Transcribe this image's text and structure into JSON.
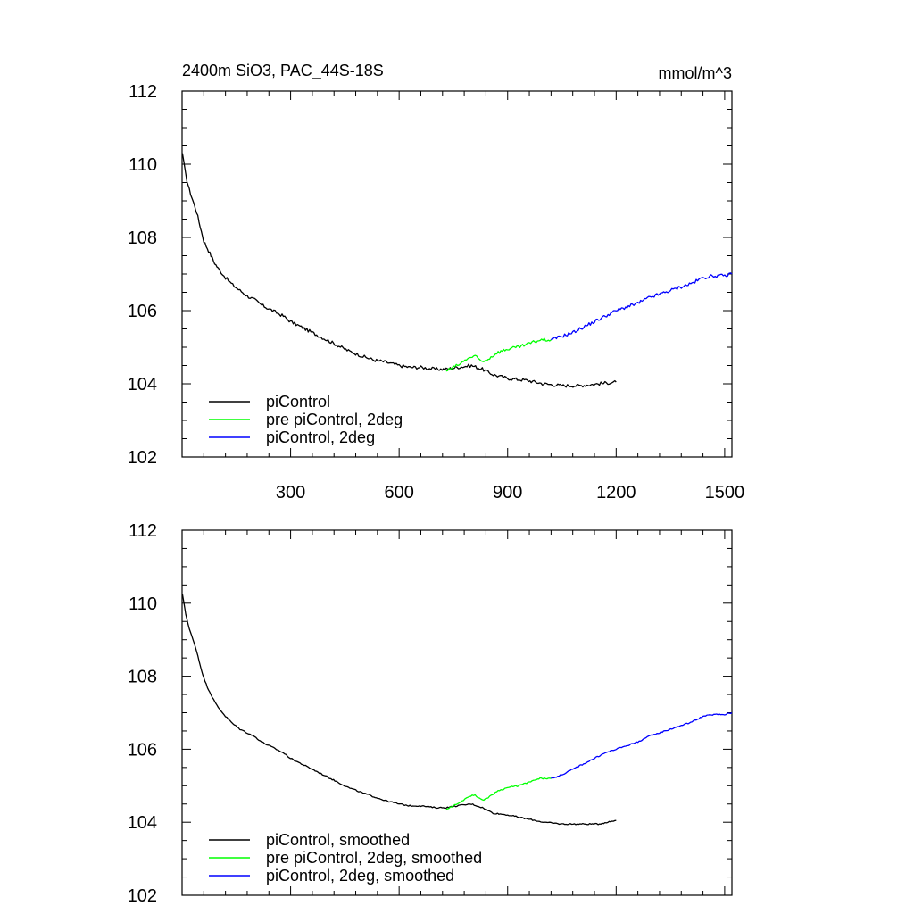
{
  "chart_data": [
    {
      "type": "line",
      "title": "2400m SiO3, PAC_44S-18S",
      "units": "mmol/m^3",
      "xlim": [
        0,
        1520
      ],
      "ylim": [
        102,
        112
      ],
      "xticks": [
        300,
        600,
        900,
        1200,
        1500
      ],
      "yticks": [
        102,
        104,
        106,
        108,
        110,
        112
      ],
      "show_x_tick_labels": true,
      "legend_position": "bottom-left",
      "series": [
        {
          "name": "piControl",
          "color": "#000000",
          "x": [
            1,
            10,
            20,
            30,
            40,
            50,
            60,
            70,
            80,
            90,
            100,
            120,
            140,
            160,
            180,
            200,
            220,
            250,
            280,
            300,
            330,
            360,
            400,
            430,
            460,
            500,
            530,
            560,
            600,
            630,
            660,
            700,
            730,
            760,
            800,
            830,
            860,
            900,
            950,
            1000,
            1050,
            1100,
            1150,
            1200
          ],
          "y": [
            110.3,
            109.7,
            109.3,
            109.0,
            108.7,
            108.3,
            107.9,
            107.7,
            107.5,
            107.3,
            107.15,
            106.9,
            106.7,
            106.55,
            106.4,
            106.3,
            106.15,
            106.0,
            105.85,
            105.7,
            105.55,
            105.4,
            105.2,
            105.05,
            104.9,
            104.75,
            104.65,
            104.6,
            104.5,
            104.45,
            104.45,
            104.4,
            104.4,
            104.45,
            104.5,
            104.4,
            104.25,
            104.15,
            104.1,
            104.0,
            103.95,
            103.95,
            104.0,
            104.05
          ]
        },
        {
          "name": "pre piControl, 2deg",
          "color": "#00ff00",
          "x": [
            730,
            750,
            770,
            790,
            810,
            830,
            850,
            870,
            900,
            930,
            960,
            990,
            1020
          ],
          "y": [
            104.35,
            104.45,
            104.55,
            104.7,
            104.75,
            104.6,
            104.7,
            104.85,
            104.95,
            105.0,
            105.1,
            105.2,
            105.2
          ]
        },
        {
          "name": "piControl, 2deg",
          "color": "#0000ff",
          "x": [
            1020,
            1050,
            1080,
            1110,
            1140,
            1170,
            1200,
            1230,
            1260,
            1290,
            1320,
            1350,
            1380,
            1410,
            1440,
            1470,
            1500,
            1520
          ],
          "y": [
            105.2,
            105.3,
            105.4,
            105.55,
            105.7,
            105.85,
            106.0,
            106.1,
            106.2,
            106.35,
            106.45,
            106.55,
            106.65,
            106.75,
            106.9,
            106.95,
            106.95,
            107.0
          ]
        }
      ]
    },
    {
      "type": "line",
      "title": "",
      "units": "",
      "xlim": [
        0,
        1520
      ],
      "ylim": [
        102,
        112
      ],
      "xticks": [
        300,
        600,
        900,
        1200,
        1500
      ],
      "yticks": [
        102,
        104,
        106,
        108,
        110,
        112
      ],
      "show_x_tick_labels": false,
      "legend_position": "bottom-left",
      "series": [
        {
          "name": "piControl, smoothed",
          "color": "#000000",
          "x": [
            1,
            10,
            20,
            30,
            40,
            50,
            60,
            70,
            80,
            90,
            100,
            120,
            140,
            160,
            180,
            200,
            220,
            250,
            280,
            300,
            330,
            360,
            400,
            430,
            460,
            500,
            530,
            560,
            600,
            630,
            660,
            700,
            730,
            760,
            800,
            830,
            860,
            900,
            950,
            1000,
            1050,
            1100,
            1150,
            1200
          ],
          "y": [
            110.25,
            109.7,
            109.3,
            109.0,
            108.7,
            108.3,
            107.95,
            107.7,
            107.5,
            107.3,
            107.15,
            106.9,
            106.7,
            106.55,
            106.45,
            106.35,
            106.2,
            106.05,
            105.9,
            105.75,
            105.6,
            105.45,
            105.25,
            105.1,
            104.95,
            104.8,
            104.7,
            104.6,
            104.5,
            104.45,
            104.45,
            104.4,
            104.4,
            104.45,
            104.5,
            104.4,
            104.25,
            104.2,
            104.1,
            104.0,
            103.95,
            103.95,
            103.95,
            104.05
          ]
        },
        {
          "name": "pre piControl, 2deg, smoothed",
          "color": "#00ff00",
          "x": [
            730,
            750,
            770,
            790,
            810,
            830,
            850,
            870,
            900,
            930,
            960,
            990,
            1020
          ],
          "y": [
            104.35,
            104.45,
            104.55,
            104.7,
            104.75,
            104.6,
            104.7,
            104.85,
            104.95,
            105.0,
            105.1,
            105.2,
            105.2
          ]
        },
        {
          "name": "piControl, 2deg, smoothed",
          "color": "#0000ff",
          "x": [
            1020,
            1050,
            1080,
            1110,
            1140,
            1170,
            1200,
            1230,
            1260,
            1290,
            1320,
            1350,
            1380,
            1410,
            1440,
            1470,
            1500,
            1520
          ],
          "y": [
            105.2,
            105.3,
            105.45,
            105.6,
            105.75,
            105.9,
            106.0,
            106.1,
            106.2,
            106.35,
            106.45,
            106.55,
            106.65,
            106.75,
            106.9,
            106.95,
            106.95,
            107.0
          ]
        }
      ]
    }
  ]
}
